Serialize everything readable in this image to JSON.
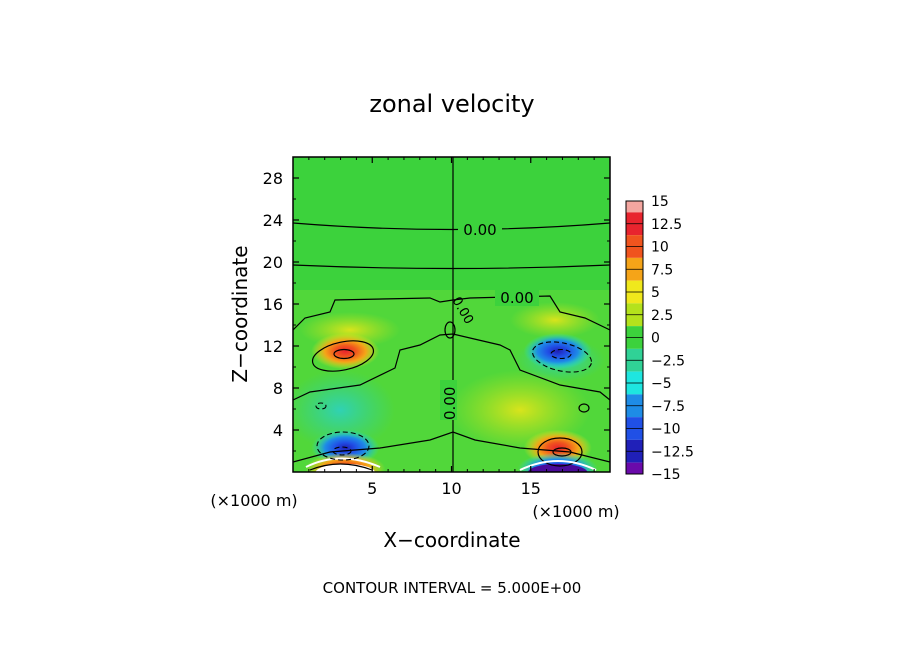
{
  "chart_data": {
    "type": "heatmap",
    "title": "zonal velocity",
    "xlabel": "X−coordinate",
    "ylabel": "Z−coordinate",
    "x_unit_left": "(×1000 m)",
    "x_unit_right": "(×1000 m)",
    "xlim": [
      0,
      20
    ],
    "ylim": [
      0,
      30
    ],
    "x_ticks": [
      5,
      10,
      15
    ],
    "y_ticks": [
      4,
      8,
      12,
      16,
      20,
      24,
      28
    ],
    "contour_interval_text": "CONTOUR INTERVAL = 5.000E+00",
    "contour_labels": [
      "0.00",
      "0.00",
      "0.00",
      "0.00"
    ],
    "colorbar": {
      "levels": [
        "15",
        "12.5",
        "10",
        "7.5",
        "5",
        "2.5",
        "0",
        "−2.5",
        "−5",
        "−7.5",
        "−10",
        "−12.5",
        "−15"
      ],
      "colors": [
        "#f4a6a0",
        "#e8242e",
        "#f0541e",
        "#f5a418",
        "#f0e81c",
        "#b4e21c",
        "#3cd23c",
        "#30d296",
        "#1ee6e0",
        "#1e8ce6",
        "#2050e6",
        "#2020b8",
        "#6a0aaa"
      ]
    },
    "features": [
      {
        "name": "positive jet upper-left",
        "x": 3.3,
        "z": 11.5,
        "value": 10
      },
      {
        "name": "negative jet upper-right",
        "x": 16.7,
        "z": 11.5,
        "value": -10
      },
      {
        "name": "negative jet lower-left",
        "x": 3.3,
        "z": 2.3,
        "value": -10
      },
      {
        "name": "positive jet lower-right",
        "x": 16.7,
        "z": 2.3,
        "value": 10
      },
      {
        "name": "strong positive bottom-left",
        "x": 3.3,
        "z": 0.3,
        "value": 15
      },
      {
        "name": "strong negative bottom-right",
        "x": 16.7,
        "z": 0.3,
        "value": -15
      }
    ]
  }
}
